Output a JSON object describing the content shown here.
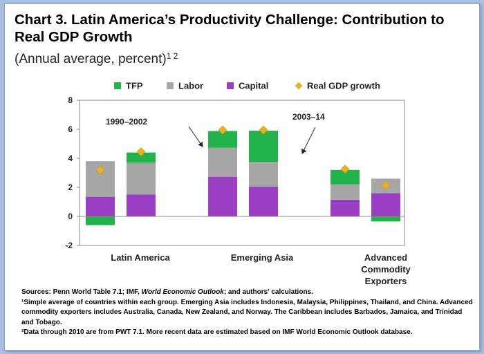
{
  "header": {
    "title": "Chart 3. Latin America’s Productivity Challenge: Contribution to Real GDP Growth",
    "subtitle": "(Annual average, percent)",
    "subtitle_refs": "1 2"
  },
  "chart_data": {
    "type": "bar",
    "stacked": true,
    "groups": [
      "Latin America",
      "Emerging Asia",
      "Advanced\nCommodity\nExporters"
    ],
    "periods": [
      "1990–2002",
      "2003–14"
    ],
    "series": [
      {
        "name": "TFP",
        "color": "#21b24b",
        "values": [
          -0.6,
          0.7,
          1.15,
          2.15,
          1.0,
          -0.35
        ]
      },
      {
        "name": "Labor",
        "color": "#a6a6a6",
        "values": [
          2.45,
          2.2,
          2.0,
          1.7,
          1.05,
          1.0
        ]
      },
      {
        "name": "Capital",
        "color": "#9a3fc4",
        "values": [
          1.35,
          1.5,
          2.73,
          2.05,
          1.15,
          1.6
        ]
      }
    ],
    "line_series": {
      "name": "Real GDP growth",
      "color": "#e8b320",
      "marker": "diamond",
      "values": [
        3.2,
        4.45,
        5.95,
        5.95,
        3.25,
        2.15
      ]
    },
    "ylim": [
      -2,
      8
    ],
    "yticks": [
      -2,
      0,
      2,
      4,
      6,
      8
    ],
    "legend_position": "top",
    "annotations": [
      "1990–2002",
      "2003–14"
    ]
  },
  "notes": {
    "sources_prefix": "Sources: Penn World Table 7.1; IMF, ",
    "sources_em": "World Economic Outlook",
    "sources_suffix": "; and authors' calculations.",
    "note1_mark": "¹",
    "note1": "Simple average of countries within each group. Emerging Asia includes Indonesia, Malaysia, Philippines, Thailand, and China. Advanced commodity exporters includes Australia, Canada, New Zealand, and Norway. The Caribbean includes Barbados, Jamaica, and Trinidad and Tobago.",
    "note2_mark": "²",
    "note2": "Data through 2010 are from PWT 7.1. More recent data are estimated based on IMF World Economic Outlook database."
  }
}
